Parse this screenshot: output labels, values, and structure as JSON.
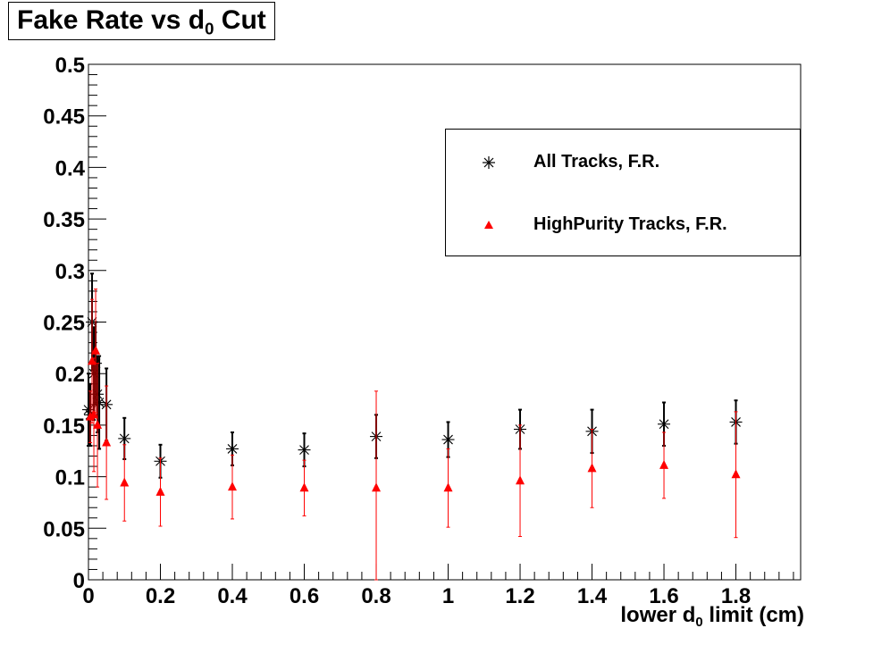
{
  "title": {
    "main": "Fake Rate vs d",
    "sub": "0",
    "tail": " Cut"
  },
  "chart_data": {
    "type": "scatter",
    "title": "Fake Rate vs d0 Cut",
    "xlabel": {
      "main": "lower d",
      "sub": "0",
      "tail": " limit (cm)"
    },
    "ylabel": "",
    "xlim": [
      0,
      1.98
    ],
    "ylim": [
      0,
      0.5
    ],
    "x_ticks": [
      0,
      0.2,
      0.4,
      0.6,
      0.8,
      1,
      1.2,
      1.4,
      1.6,
      1.8
    ],
    "x_tick_labels": [
      "0",
      "0.2",
      "0.4",
      "0.6",
      "0.8",
      "1",
      "1.2",
      "1.4",
      "1.6",
      "1.8"
    ],
    "y_ticks": [
      0,
      0.05,
      0.1,
      0.15,
      0.2,
      0.25,
      0.3,
      0.35,
      0.4,
      0.45,
      0.5
    ],
    "y_tick_labels": [
      "0",
      "0.05",
      "0.1",
      "0.15",
      "0.2",
      "0.25",
      "0.3",
      "0.35",
      "0.4",
      "0.45",
      "0.5"
    ],
    "grid": false,
    "legend_position": "top-right",
    "series": [
      {
        "name": "All Tracks, F.R.",
        "marker": "asterisk",
        "color": "#000000",
        "points": [
          {
            "x": 0,
            "y": 0.165,
            "err": 0.035
          },
          {
            "x": 0.005,
            "y": 0.16,
            "err": 0.03
          },
          {
            "x": 0.01,
            "y": 0.25,
            "err": 0.047
          },
          {
            "x": 0.015,
            "y": 0.2,
            "err": 0.045
          },
          {
            "x": 0.02,
            "y": 0.21,
            "err": 0.04
          },
          {
            "x": 0.025,
            "y": 0.18,
            "err": 0.037
          },
          {
            "x": 0.03,
            "y": 0.172,
            "err": 0.045
          },
          {
            "x": 0.05,
            "y": 0.17,
            "err": 0.035
          },
          {
            "x": 0.1,
            "y": 0.137,
            "err": 0.02
          },
          {
            "x": 0.2,
            "y": 0.115,
            "err": 0.016
          },
          {
            "x": 0.4,
            "y": 0.127,
            "err": 0.016
          },
          {
            "x": 0.6,
            "y": 0.126,
            "err": 0.016
          },
          {
            "x": 0.8,
            "y": 0.139,
            "err": 0.021
          },
          {
            "x": 1.0,
            "y": 0.136,
            "err": 0.017
          },
          {
            "x": 1.2,
            "y": 0.146,
            "err": 0.019
          },
          {
            "x": 1.4,
            "y": 0.144,
            "err": 0.021
          },
          {
            "x": 1.6,
            "y": 0.151,
            "err": 0.021
          },
          {
            "x": 1.8,
            "y": 0.153,
            "err": 0.021
          }
        ]
      },
      {
        "name": "HighPurity Tracks, F.R.",
        "marker": "triangle",
        "color": "#ff0000",
        "points": [
          {
            "x": 0.005,
            "y": 0.158,
            "err": 0.025
          },
          {
            "x": 0.01,
            "y": 0.212,
            "err": 0.06
          },
          {
            "x": 0.015,
            "y": 0.16,
            "err": 0.055
          },
          {
            "x": 0.02,
            "y": 0.222,
            "err": 0.06
          },
          {
            "x": 0.025,
            "y": 0.15,
            "err": 0.06
          },
          {
            "x": 0.05,
            "y": 0.133,
            "err": 0.055
          },
          {
            "x": 0.1,
            "y": 0.094,
            "err": 0.037
          },
          {
            "x": 0.2,
            "y": 0.085,
            "err": 0.033
          },
          {
            "x": 0.4,
            "y": 0.09,
            "err": 0.031
          },
          {
            "x": 0.6,
            "y": 0.089,
            "err": 0.027
          },
          {
            "x": 0.8,
            "y": 0.089,
            "err": 0.094
          },
          {
            "x": 1.0,
            "y": 0.089,
            "err": 0.038
          },
          {
            "x": 1.2,
            "y": 0.096,
            "err": 0.054
          },
          {
            "x": 1.4,
            "y": 0.108,
            "err": 0.038
          },
          {
            "x": 1.6,
            "y": 0.111,
            "err": 0.032
          },
          {
            "x": 1.8,
            "y": 0.102,
            "err": 0.061
          }
        ]
      }
    ]
  }
}
